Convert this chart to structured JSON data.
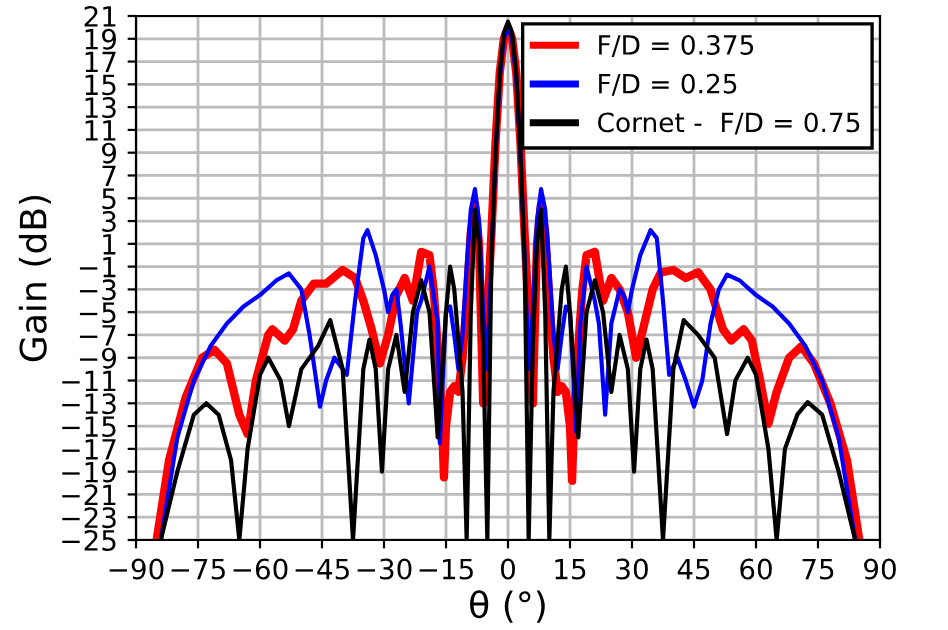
{
  "chart_data": {
    "type": "line",
    "xlabel": "θ (°)",
    "ylabel": "Gain (dB)",
    "xlim": [
      -90,
      90
    ],
    "xticks": [
      -90,
      -75,
      -60,
      -45,
      -30,
      -15,
      0,
      15,
      30,
      45,
      60,
      75,
      90
    ],
    "ylim": [
      -25,
      21
    ],
    "yticks": [
      -25,
      -23,
      -21,
      -19,
      -17,
      -15,
      -13,
      -11,
      -9,
      -7,
      -5,
      -3,
      -1,
      1,
      3,
      5,
      7,
      9,
      11,
      13,
      15,
      17,
      19,
      21
    ],
    "grid": true,
    "legend": "top right",
    "line_style": "solid",
    "marker": "none",
    "series": [
      {
        "name": "F/D = 0.375",
        "color": "#ff0000",
        "x": [
          -85,
          -82,
          -78,
          -74,
          -71,
          -68,
          -65,
          -63,
          -61,
          -58,
          -57,
          -54,
          -52,
          -50,
          -47,
          -44,
          -40,
          -37,
          -35,
          -33,
          -31,
          -29,
          -27,
          -25,
          -23,
          -21,
          -19,
          -18,
          -17,
          -16,
          -15.5,
          -15,
          -14,
          -13,
          -12,
          -11,
          -10,
          -9,
          -8,
          -7,
          -6.5,
          -6,
          -5,
          -4,
          -3,
          -2,
          -1,
          0,
          1,
          2,
          3,
          4,
          5,
          6,
          6.5,
          7,
          8,
          9,
          10,
          11,
          12,
          13,
          14,
          15,
          15.5,
          16,
          17,
          18,
          19,
          21,
          23,
          25,
          27,
          29,
          31,
          33,
          35,
          37,
          40,
          43,
          46,
          49,
          52,
          54,
          57,
          59,
          61,
          63,
          65,
          68,
          71,
          74,
          78,
          82,
          85
        ],
        "values": [
          -25,
          -18,
          -12.5,
          -9,
          -8.3,
          -9.5,
          -14,
          -15.7,
          -11,
          -7,
          -6.5,
          -7.5,
          -6.5,
          -4,
          -2.5,
          -2.5,
          -1.3,
          -2,
          -4,
          -6.5,
          -9.5,
          -7,
          -3.5,
          -2,
          -4,
          0.3,
          0,
          -3,
          -8,
          -14,
          -19.5,
          -15,
          -12,
          -11.5,
          -12,
          -9,
          -4,
          2,
          4.5,
          1,
          -6,
          -13,
          -5,
          2,
          10,
          16,
          19,
          20,
          19,
          16,
          10,
          2,
          -5,
          -13,
          -6,
          1,
          4.5,
          2,
          -4,
          -9,
          -12,
          -11.5,
          -12,
          -15,
          -19.8,
          -14,
          -8,
          -3,
          0,
          0.3,
          -4,
          -2,
          -3,
          -5,
          -9,
          -6,
          -3,
          -1.5,
          -1.3,
          -2,
          -1.5,
          -3,
          -6.5,
          -7.5,
          -6.5,
          -7.5,
          -11,
          -14.8,
          -12,
          -9,
          -8,
          -9.5,
          -13,
          -18,
          -25
        ]
      },
      {
        "name": "F/D = 0.25",
        "color": "#0000ff",
        "x": [
          -84,
          -80,
          -76,
          -72,
          -68,
          -64,
          -60,
          -56,
          -53,
          -50,
          -48,
          -46,
          -45.5,
          -44,
          -42,
          -40,
          -39,
          -37,
          -35,
          -34,
          -32,
          -30,
          -29,
          -28,
          -27,
          -26,
          -24,
          -22,
          -21,
          -19,
          -17,
          -16.5,
          -15,
          -14,
          -13,
          -12,
          -11,
          -10,
          -9,
          -8,
          -7,
          -6,
          -5,
          -4,
          -3,
          -2,
          -1,
          0,
          1,
          2,
          3,
          4,
          5,
          6,
          7,
          8,
          9,
          10,
          11,
          12,
          13,
          14,
          15,
          16.5,
          17.5,
          19,
          21,
          22,
          23.5,
          25,
          27,
          28,
          29,
          30,
          32,
          34.5,
          36,
          37.5,
          39,
          41,
          43,
          45,
          47,
          49,
          51,
          53,
          56,
          60,
          64,
          68,
          72,
          76,
          80,
          84
        ],
        "values": [
          -25,
          -16,
          -11,
          -8,
          -6,
          -4.5,
          -3.5,
          -2.2,
          -1.6,
          -3,
          -7,
          -12,
          -13.3,
          -11,
          -9,
          -10,
          -10.5,
          -4,
          1.5,
          2.2,
          0,
          -3,
          -5,
          -3.5,
          -3,
          -6,
          -13,
          -5,
          -4,
          -1,
          -6,
          -16.5,
          -5,
          -4.5,
          -7,
          -10,
          -7,
          -1,
          4,
          5.8,
          3,
          -5,
          -10,
          0,
          9,
          15.5,
          19,
          20,
          19,
          15.5,
          9,
          0,
          -10,
          -5,
          3,
          5.8,
          4,
          -1,
          -7,
          -10,
          -7,
          -4.5,
          -5,
          -15.5,
          -6,
          -1,
          -4,
          -6,
          -14,
          -6,
          -3,
          -3.5,
          -5,
          -3,
          0,
          2.2,
          1.5,
          -4,
          -10.5,
          -9,
          -11,
          -13.3,
          -11,
          -6,
          -3,
          -1.7,
          -2.2,
          -3.5,
          -4.5,
          -6,
          -8,
          -11,
          -16,
          -25
        ]
      },
      {
        "name": "Cornet -  F/D = 0.75",
        "color": "#000000",
        "x": [
          -84,
          -80,
          -76,
          -73,
          -70,
          -67,
          -65,
          -63,
          -60,
          -58,
          -55,
          -53,
          -50,
          -46,
          -43,
          -40,
          -37.5,
          -35,
          -33.5,
          -32,
          -30.5,
          -29,
          -27,
          -25,
          -23,
          -21,
          -19,
          -17,
          -15,
          -14,
          -13,
          -11,
          -10,
          -9,
          -8,
          -7,
          -6,
          -5,
          -4,
          -3,
          -2,
          -1,
          0,
          1,
          2,
          3,
          4,
          5,
          6,
          7,
          8,
          9,
          10,
          11,
          13,
          14,
          15,
          17,
          19,
          21,
          23,
          25,
          27,
          29,
          30.5,
          32,
          33.5,
          35,
          37.5,
          40,
          42.5,
          46,
          50,
          53,
          55,
          58,
          60,
          63,
          65,
          67,
          70,
          72.5,
          76,
          80,
          84
        ],
        "values": [
          -25,
          -19,
          -14,
          -13,
          -14,
          -18,
          -25,
          -17,
          -10.5,
          -9,
          -11,
          -15,
          -10,
          -8,
          -5.7,
          -10,
          -25,
          -10,
          -7.4,
          -10,
          -19,
          -10,
          -7,
          -12,
          -5,
          -2.2,
          -5,
          -16,
          -5,
          -1,
          -3,
          -12,
          -25,
          -5,
          4,
          1,
          -8,
          -25,
          0,
          9,
          16,
          19.5,
          20.5,
          19.5,
          16,
          9,
          0,
          -25,
          -8,
          1,
          4,
          -5,
          -25,
          -12,
          -3,
          -1,
          -5,
          -16,
          -5,
          -2.2,
          -5,
          -12,
          -7,
          -10,
          -19,
          -10,
          -7.4,
          -10,
          -25,
          -10,
          -5.7,
          -7,
          -9,
          -15.7,
          -11,
          -9,
          -10.5,
          -17,
          -25,
          -17,
          -14,
          -12.9,
          -14,
          -19,
          -25
        ]
      }
    ]
  }
}
